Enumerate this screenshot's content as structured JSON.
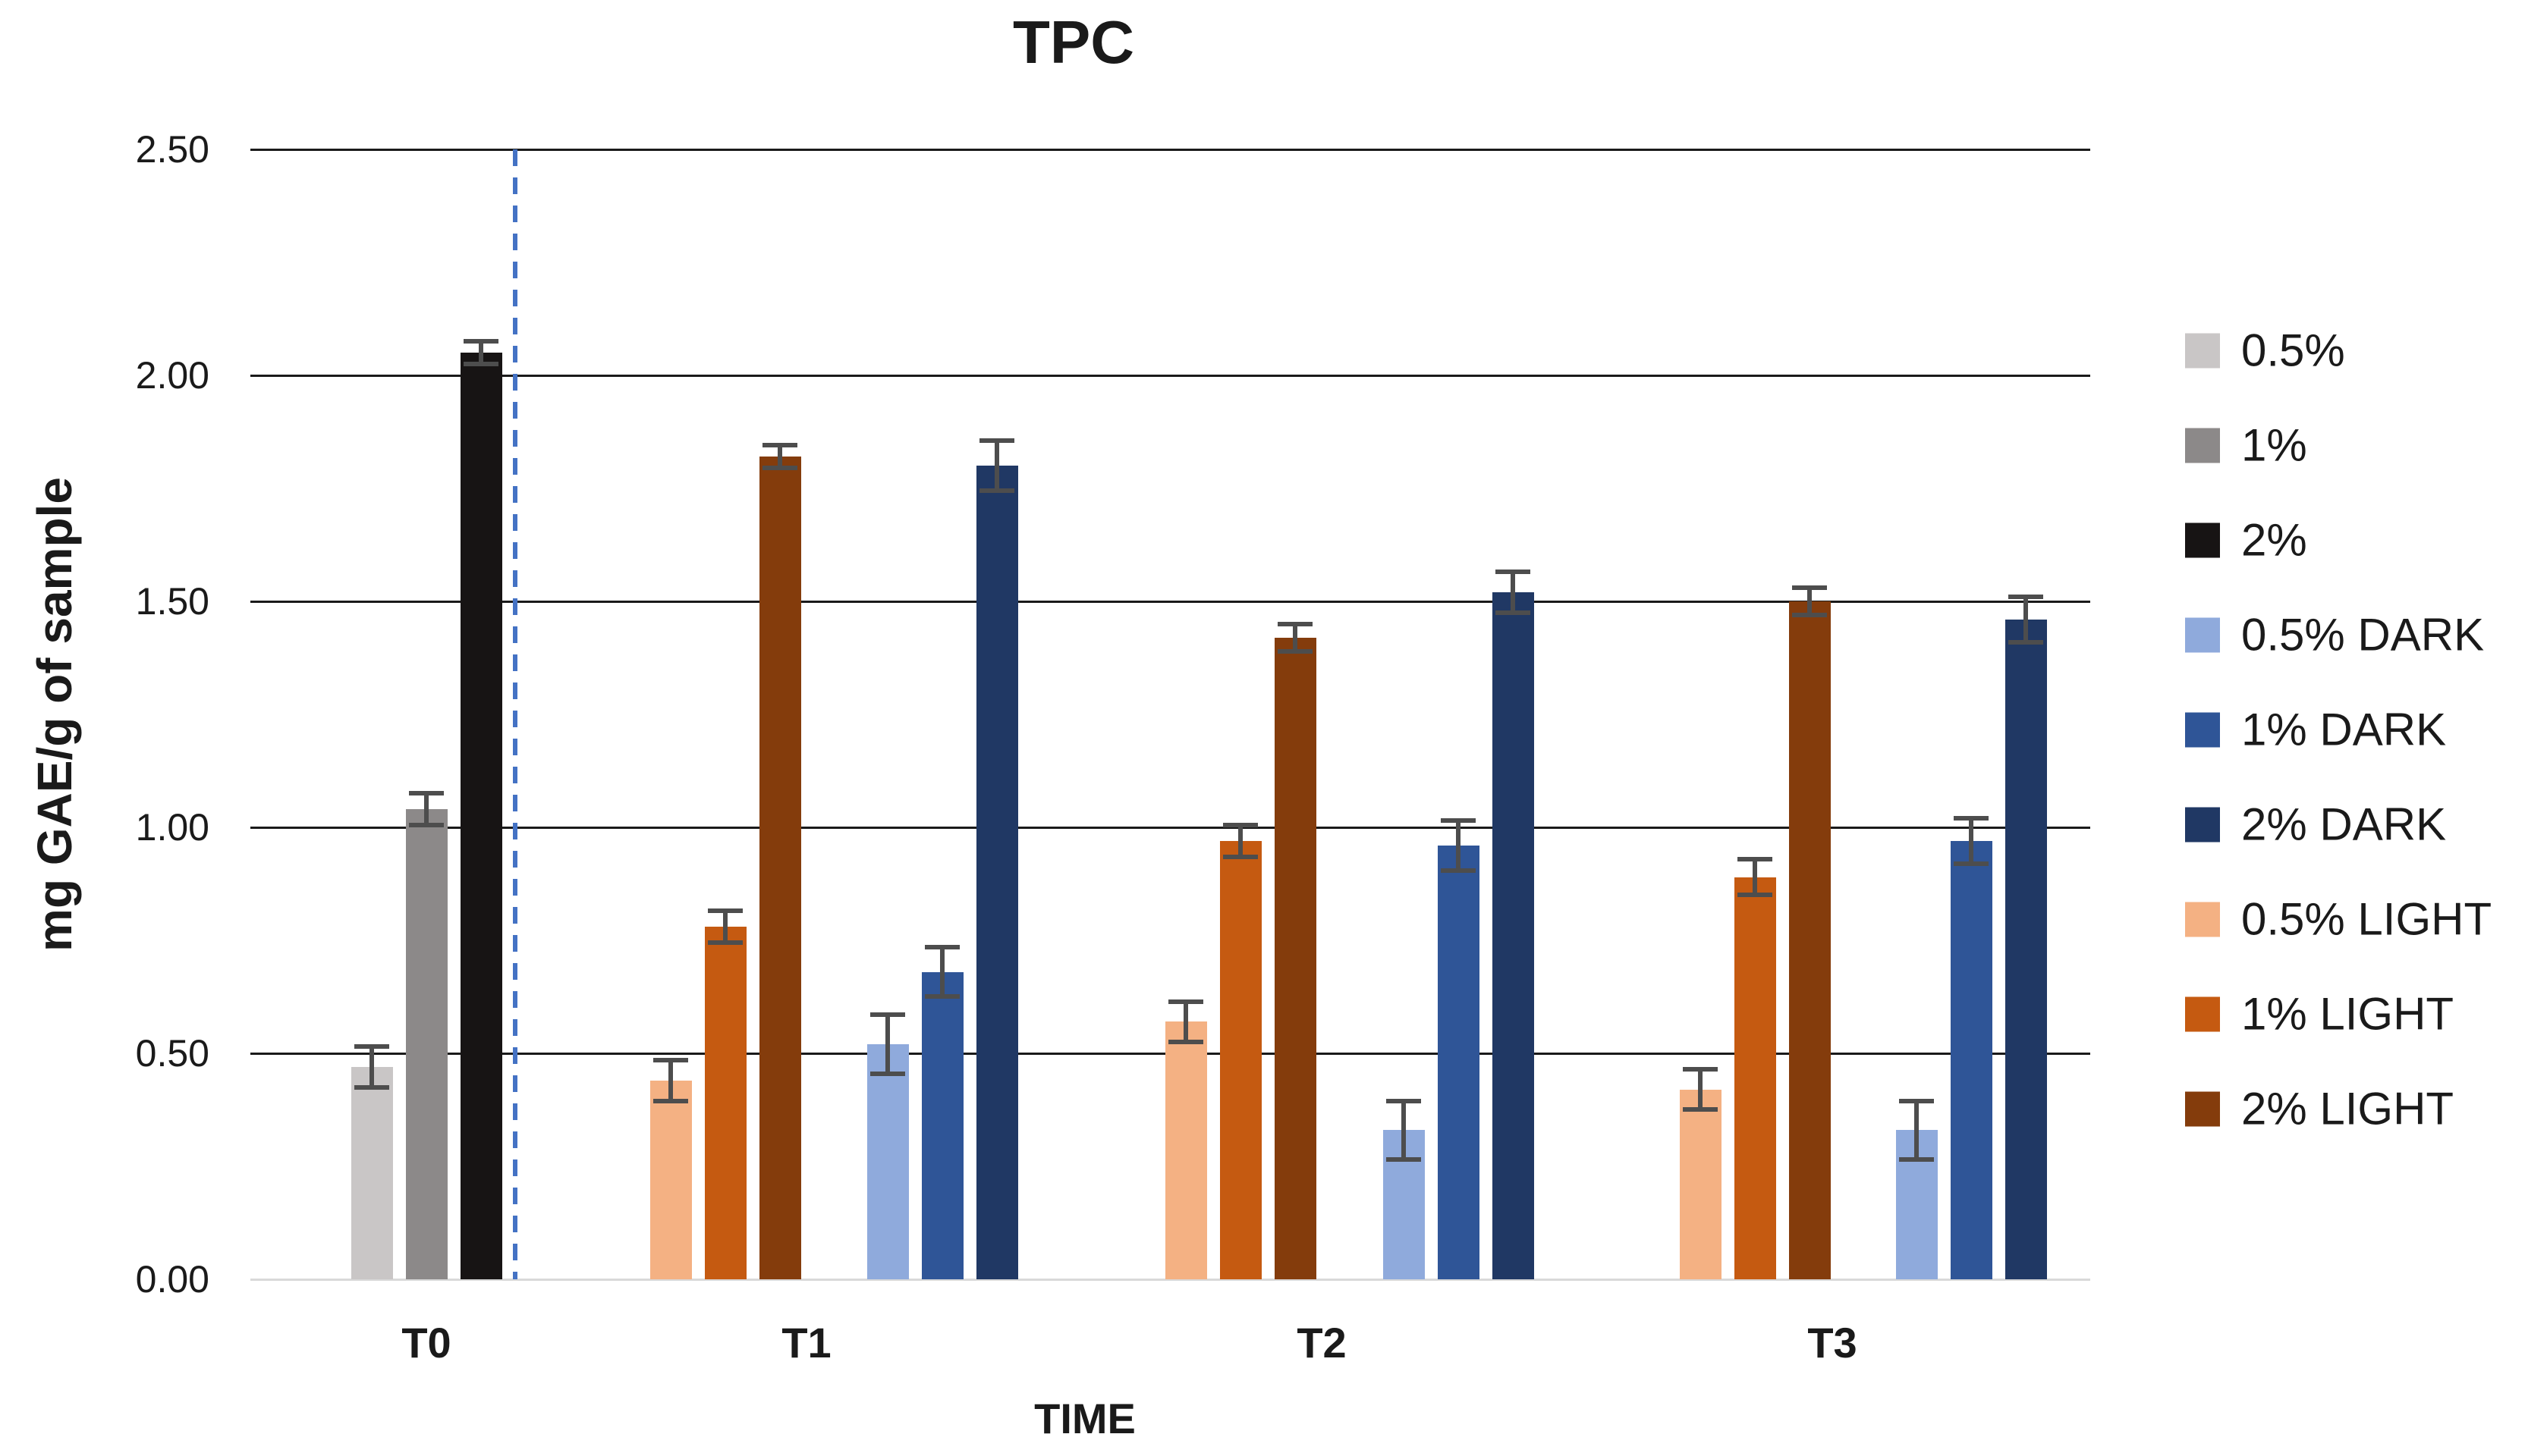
{
  "chart_data": {
    "type": "bar",
    "title": "TPC",
    "ylabel": "mg GAE/g of sample",
    "xlabel": "TIME",
    "ylim": [
      0,
      2.5
    ],
    "grid": true,
    "legend_position": "right",
    "yticks": [
      {
        "value": 2.5,
        "label": "2.50"
      },
      {
        "value": 2.0,
        "label": "2.00"
      },
      {
        "value": 1.5,
        "label": "1.50"
      },
      {
        "value": 1.0,
        "label": "1.00"
      },
      {
        "value": 0.5,
        "label": "0.50"
      },
      {
        "value": 0.0,
        "label": "0.00"
      }
    ],
    "series": [
      {
        "name": "0.5%",
        "color": "#C9C6C6"
      },
      {
        "name": "1%",
        "color": "#8C8989"
      },
      {
        "name": "2%",
        "color": "#171414"
      },
      {
        "name": "0.5% DARK",
        "color": "#8FAADC"
      },
      {
        "name": "1% DARK",
        "color": "#2F5597"
      },
      {
        "name": "2% DARK",
        "color": "#203864"
      },
      {
        "name": "0.5% LIGHT",
        "color": "#F4B183"
      },
      {
        "name": "1% LIGHT",
        "color": "#C55A11"
      },
      {
        "name": "2% LIGHT",
        "color": "#843C0C"
      }
    ],
    "categories": [
      {
        "label": "T0",
        "bars": [
          {
            "series": "0.5%",
            "value": 0.47,
            "error": 0.05
          },
          {
            "series": "1%",
            "value": 1.04,
            "error": 0.04
          },
          {
            "series": "2%",
            "value": 2.05,
            "error": 0.03
          }
        ]
      },
      {
        "label": "T1",
        "bars": [
          {
            "series": "0.5% LIGHT",
            "value": 0.44,
            "error": 0.05
          },
          {
            "series": "1% LIGHT",
            "value": 0.78,
            "error": 0.04
          },
          {
            "series": "2% LIGHT",
            "value": 1.82,
            "error": 0.03
          },
          {
            "series": "0.5% DARK",
            "value": 0.52,
            "error": 0.07
          },
          {
            "series": "1% DARK",
            "value": 0.68,
            "error": 0.06
          },
          {
            "series": "2% DARK",
            "value": 1.8,
            "error": 0.06
          }
        ]
      },
      {
        "label": "T2",
        "bars": [
          {
            "series": "0.5% LIGHT",
            "value": 0.57,
            "error": 0.05
          },
          {
            "series": "1% LIGHT",
            "value": 0.97,
            "error": 0.04
          },
          {
            "series": "2% LIGHT",
            "value": 1.42,
            "error": 0.035
          },
          {
            "series": "0.5% DARK",
            "value": 0.33,
            "error": 0.07
          },
          {
            "series": "1% DARK",
            "value": 0.96,
            "error": 0.06
          },
          {
            "series": "2% DARK",
            "value": 1.52,
            "error": 0.05
          }
        ]
      },
      {
        "label": "T3",
        "bars": [
          {
            "series": "0.5% LIGHT",
            "value": 0.42,
            "error": 0.05
          },
          {
            "series": "1% LIGHT",
            "value": 0.89,
            "error": 0.045
          },
          {
            "series": "2% LIGHT",
            "value": 1.5,
            "error": 0.035
          },
          {
            "series": "0.5% DARK",
            "value": 0.33,
            "error": 0.07
          },
          {
            "series": "1% DARK",
            "value": 0.97,
            "error": 0.055
          },
          {
            "series": "2% DARK",
            "value": 1.46,
            "error": 0.055
          }
        ]
      }
    ],
    "annotations": [
      {
        "type": "vline",
        "style": "dashed",
        "color": "#4472C4",
        "after_category": "T0"
      }
    ],
    "error_bar_color": "#4D4D4D",
    "gridline_color": "#1A1A1A",
    "baseline_color": "#D9D9D9"
  }
}
